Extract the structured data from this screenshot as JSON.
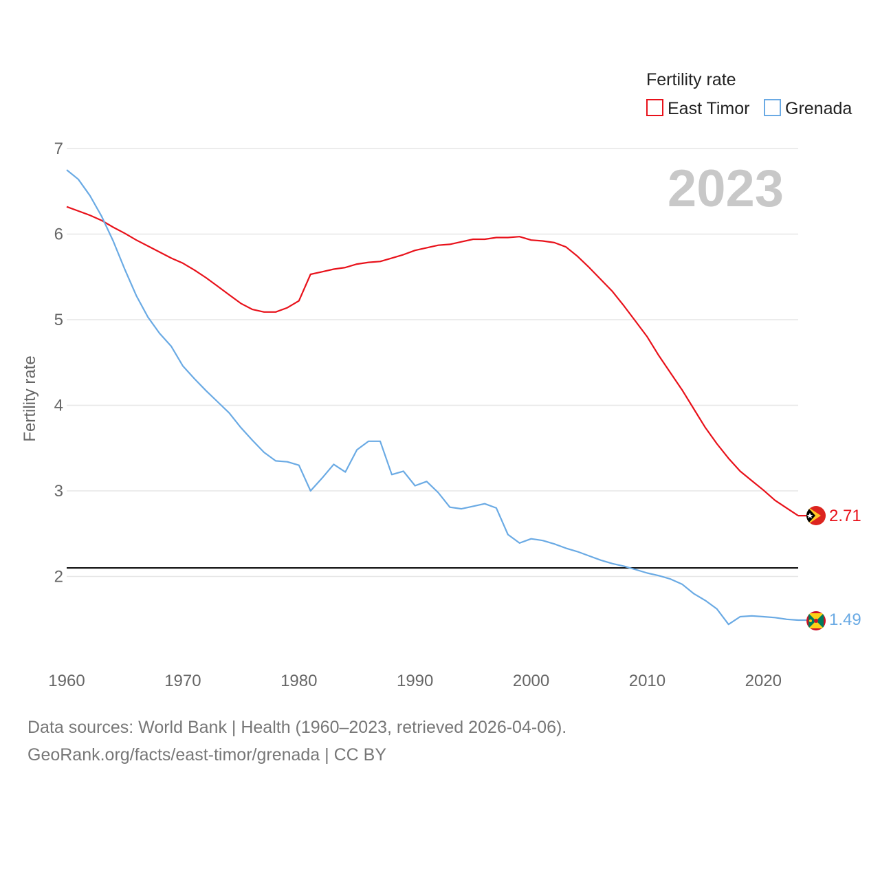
{
  "chart_data": {
    "type": "line",
    "legend_title": "Fertility rate",
    "ylabel": "Fertility rate",
    "xlabel": "",
    "current_year": "2023",
    "ylim": [
      1.0,
      7.0
    ],
    "xlim": [
      1960,
      2023
    ],
    "y_ticks": [
      2,
      3,
      4,
      5,
      6,
      7
    ],
    "x_ticks": [
      1960,
      1970,
      1980,
      1990,
      2000,
      2010,
      2020
    ],
    "reference_line": 2.1,
    "legend_position": "top-right",
    "x": [
      1960,
      1961,
      1962,
      1963,
      1964,
      1965,
      1966,
      1967,
      1968,
      1969,
      1970,
      1971,
      1972,
      1973,
      1974,
      1975,
      1976,
      1977,
      1978,
      1979,
      1980,
      1981,
      1982,
      1983,
      1984,
      1985,
      1986,
      1987,
      1988,
      1989,
      1990,
      1991,
      1992,
      1993,
      1994,
      1995,
      1996,
      1997,
      1998,
      1999,
      2000,
      2001,
      2002,
      2003,
      2004,
      2005,
      2006,
      2007,
      2008,
      2009,
      2010,
      2011,
      2012,
      2013,
      2014,
      2015,
      2016,
      2017,
      2018,
      2019,
      2020,
      2021,
      2022,
      2023
    ],
    "series": [
      {
        "name": "East Timor",
        "color": "#e8111a",
        "end_label": "2.71",
        "values": [
          6.32,
          6.27,
          6.22,
          6.16,
          6.08,
          6.01,
          5.93,
          5.86,
          5.79,
          5.72,
          5.66,
          5.58,
          5.49,
          5.39,
          5.29,
          5.19,
          5.12,
          5.09,
          5.09,
          5.14,
          5.22,
          5.53,
          5.56,
          5.59,
          5.61,
          5.65,
          5.67,
          5.68,
          5.72,
          5.76,
          5.81,
          5.84,
          5.87,
          5.88,
          5.91,
          5.94,
          5.94,
          5.96,
          5.96,
          5.97,
          5.93,
          5.92,
          5.9,
          5.85,
          5.74,
          5.61,
          5.47,
          5.33,
          5.16,
          4.98,
          4.8,
          4.58,
          4.38,
          4.18,
          3.96,
          3.74,
          3.55,
          3.38,
          3.23,
          3.12,
          3.01,
          2.89,
          2.8,
          2.71
        ]
      },
      {
        "name": "Grenada",
        "color": "#6aaae4",
        "end_label": "1.49",
        "values": [
          6.75,
          6.64,
          6.45,
          6.21,
          5.92,
          5.59,
          5.28,
          5.03,
          4.84,
          4.69,
          4.46,
          4.31,
          4.17,
          4.04,
          3.91,
          3.74,
          3.59,
          3.45,
          3.35,
          3.34,
          3.3,
          3.0,
          3.15,
          3.31,
          3.22,
          3.48,
          3.58,
          3.58,
          3.19,
          3.23,
          3.06,
          3.11,
          2.98,
          2.81,
          2.79,
          2.82,
          2.85,
          2.8,
          2.49,
          2.39,
          2.44,
          2.42,
          2.38,
          2.33,
          2.29,
          2.24,
          2.19,
          2.15,
          2.12,
          2.08,
          2.04,
          2.01,
          1.97,
          1.91,
          1.8,
          1.72,
          1.62,
          1.44,
          1.53,
          1.54,
          1.53,
          1.52,
          1.5,
          1.49
        ]
      }
    ]
  },
  "footer": {
    "line1": "Data sources: World Bank | Health (1960–2023, retrieved 2026-04-06).",
    "line2": "GeoRank.org/facts/east-timor/grenada | CC BY"
  }
}
